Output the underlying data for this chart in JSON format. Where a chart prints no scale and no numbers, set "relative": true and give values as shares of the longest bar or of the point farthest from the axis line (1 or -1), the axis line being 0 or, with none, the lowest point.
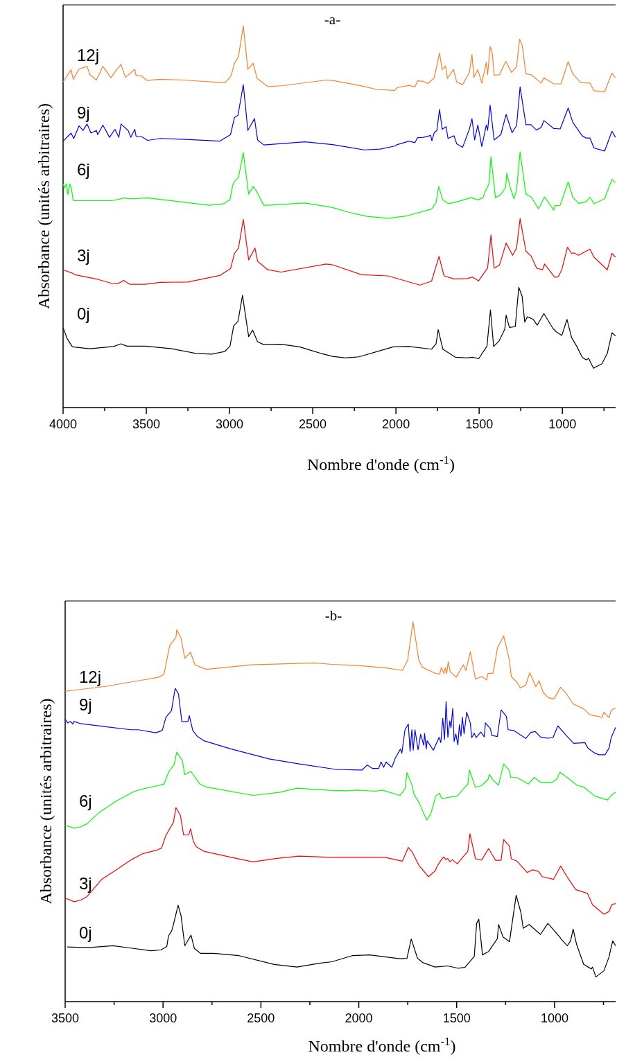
{
  "chart_data": [
    {
      "type": "line",
      "title": "-a-",
      "xlabel": "Nombre d'onde (cm$^{-1}$)",
      "ylabel": "Absorbance (unités arbitraires)",
      "relative": true,
      "tick_labels": "x",
      "xlim": [
        4000,
        680
      ],
      "xticks": [
        4000,
        {
          "value": 3750,
          "label": null
        },
        3500,
        {
          "value": 3250,
          "label": null
        },
        3000,
        {
          "value": 2750,
          "label": null
        },
        2500,
        {
          "value": 2250,
          "label": null
        },
        2000,
        {
          "value": 1750,
          "label": null
        },
        1500,
        {
          "value": 1250,
          "label": null
        },
        1000,
        {
          "value": 750,
          "label": null
        }
      ],
      "series": [
        {
          "name": "12j",
          "color": "#ff7f27",
          "x": [
            4000,
            3952,
            3939,
            3904,
            3856,
            3840,
            3800,
            3761,
            3713,
            3681,
            3652,
            3625,
            3569,
            3561,
            3529,
            3497,
            3417,
            3281,
            3026,
            2991,
            2970,
            2946,
            2917,
            2890,
            2858,
            2834,
            2770,
            2690,
            2419,
            2381,
            2222,
            2111,
            2008,
            1992,
            1921,
            1886,
            1870,
            1841,
            1807,
            1770,
            1738,
            1722,
            1702,
            1691,
            1654,
            1635,
            1599,
            1559,
            1543,
            1532,
            1508,
            1484,
            1457,
            1449,
            1434,
            1421,
            1410,
            1378,
            1340,
            1305,
            1275,
            1257,
            1241,
            1219,
            1188,
            1127,
            1111,
            1051,
            1008,
            965,
            937,
            889,
            834,
            810,
            746,
            702,
            681
          ],
          "values": [
            0.853,
            0.885,
            0.86,
            0.887,
            0.894,
            0.873,
            0.858,
            0.894,
            0.864,
            0.883,
            0.899,
            0.865,
            0.886,
            0.869,
            0.869,
            0.857,
            0.86,
            0.858,
            0.851,
            0.869,
            0.902,
            0.92,
            1.0,
            0.886,
            0.902,
            0.862,
            0.841,
            0.843,
            0.858,
            0.857,
            0.844,
            0.833,
            0.831,
            0.838,
            0.844,
            0.84,
            0.856,
            0.855,
            0.849,
            0.864,
            0.929,
            0.885,
            0.895,
            0.862,
            0.886,
            0.853,
            0.846,
            0.878,
            0.925,
            0.865,
            0.885,
            0.85,
            0.904,
            0.872,
            0.946,
            0.928,
            0.871,
            0.872,
            0.907,
            0.878,
            0.893,
            0.965,
            0.949,
            0.874,
            0.872,
            0.85,
            0.864,
            0.848,
            0.848,
            0.906,
            0.874,
            0.851,
            0.85,
            0.83,
            0.827,
            0.876,
            0.864
          ]
        },
        {
          "name": "9j",
          "color": "#0000ff",
          "x": [
            4000,
            3952,
            3936,
            3904,
            3880,
            3856,
            3832,
            3800,
            3792,
            3761,
            3721,
            3689,
            3665,
            3652,
            3609,
            3593,
            3569,
            3561,
            3529,
            3492,
            3417,
            3281,
            3058,
            2994,
            2970,
            2949,
            2917,
            2890,
            2850,
            2831,
            2794,
            2547,
            2381,
            2191,
            2095,
            2008,
            1992,
            1921,
            1886,
            1870,
            1834,
            1791,
            1784,
            1770,
            1754,
            1738,
            1722,
            1699,
            1687,
            1651,
            1635,
            1599,
            1559,
            1543,
            1527,
            1508,
            1484,
            1457,
            1449,
            1434,
            1410,
            1370,
            1338,
            1302,
            1275,
            1254,
            1219,
            1188,
            1156,
            1127,
            1111,
            1051,
            1013,
            965,
            937,
            881,
            857,
            834,
            810,
            746,
            702,
            681
          ],
          "values": [
            0.698,
            0.719,
            0.705,
            0.738,
            0.726,
            0.743,
            0.719,
            0.726,
            0.715,
            0.74,
            0.708,
            0.729,
            0.708,
            0.743,
            0.726,
            0.708,
            0.729,
            0.71,
            0.71,
            0.7,
            0.705,
            0.703,
            0.698,
            0.715,
            0.76,
            0.766,
            0.846,
            0.726,
            0.757,
            0.701,
            0.688,
            0.696,
            0.689,
            0.675,
            0.677,
            0.685,
            0.689,
            0.698,
            0.694,
            0.707,
            0.708,
            0.713,
            0.699,
            0.72,
            0.726,
            0.781,
            0.729,
            0.736,
            0.705,
            0.712,
            0.691,
            0.682,
            0.729,
            0.757,
            0.701,
            0.74,
            0.684,
            0.74,
            0.726,
            0.792,
            0.701,
            0.715,
            0.768,
            0.72,
            0.739,
            0.84,
            0.741,
            0.741,
            0.727,
            0.734,
            0.752,
            0.731,
            0.73,
            0.785,
            0.747,
            0.712,
            0.706,
            0.706,
            0.68,
            0.672,
            0.724,
            0.708
          ]
        },
        {
          "name": "6j",
          "color": "#00ff00",
          "x": [
            4000,
            3992,
            3981,
            3971,
            3960,
            3949,
            3941,
            3936,
            3705,
            3633,
            3601,
            3489,
            3329,
            3122,
            3034,
            2997,
            2981,
            2970,
            2946,
            2917,
            2885,
            2858,
            2839,
            2794,
            2770,
            2547,
            2403,
            2381,
            2286,
            2175,
            2048,
            1937,
            1786,
            1759,
            1743,
            1718,
            1683,
            1619,
            1548,
            1508,
            1476,
            1464,
            1441,
            1429,
            1402,
            1370,
            1341,
            1334,
            1315,
            1291,
            1275,
            1254,
            1219,
            1188,
            1143,
            1107,
            1051,
            1045,
            1013,
            965,
            937,
            902,
            857,
            834,
            810,
            746,
            702,
            681
          ],
          "values": [
            0.586,
            0.575,
            0.586,
            0.558,
            0.586,
            0.572,
            0.547,
            0.542,
            0.542,
            0.549,
            0.547,
            0.549,
            0.541,
            0.53,
            0.534,
            0.545,
            0.582,
            0.593,
            0.603,
            0.668,
            0.559,
            0.579,
            0.568,
            0.53,
            0.53,
            0.536,
            0.526,
            0.524,
            0.512,
            0.501,
            0.496,
            0.502,
            0.52,
            0.537,
            0.579,
            0.544,
            0.534,
            0.541,
            0.55,
            0.544,
            0.55,
            0.565,
            0.586,
            0.657,
            0.55,
            0.558,
            0.577,
            0.614,
            0.579,
            0.547,
            0.57,
            0.67,
            0.559,
            0.552,
            0.521,
            0.552,
            0.517,
            0.529,
            0.53,
            0.591,
            0.551,
            0.535,
            0.539,
            0.551,
            0.534,
            0.547,
            0.598,
            0.589
          ]
        },
        {
          "name": "3j",
          "color": "#ff0000",
          "x": [
            4000,
            3944,
            3928,
            3792,
            3705,
            3665,
            3636,
            3601,
            3505,
            3417,
            3250,
            3058,
            2994,
            2970,
            2946,
            2917,
            2885,
            2847,
            2831,
            2770,
            2690,
            2419,
            2381,
            2206,
            2048,
            1857,
            1786,
            1741,
            1711,
            1651,
            1572,
            1540,
            1503,
            1449,
            1429,
            1410,
            1378,
            1338,
            1299,
            1275,
            1254,
            1219,
            1188,
            1154,
            1119,
            1107,
            1045,
            1024,
            1003,
            969,
            945,
            929,
            902,
            857,
            834,
            810,
            730,
            702,
            681
          ],
          "values": [
            0.361,
            0.352,
            0.348,
            0.336,
            0.325,
            0.326,
            0.333,
            0.323,
            0.323,
            0.328,
            0.329,
            0.346,
            0.364,
            0.404,
            0.418,
            0.493,
            0.387,
            0.418,
            0.383,
            0.361,
            0.355,
            0.376,
            0.374,
            0.348,
            0.345,
            0.321,
            0.331,
            0.396,
            0.345,
            0.337,
            0.338,
            0.342,
            0.332,
            0.366,
            0.452,
            0.365,
            0.373,
            0.431,
            0.399,
            0.418,
            0.495,
            0.41,
            0.397,
            0.365,
            0.361,
            0.376,
            0.341,
            0.343,
            0.362,
            0.42,
            0.404,
            0.405,
            0.399,
            0.41,
            0.415,
            0.394,
            0.361,
            0.404,
            0.394
          ]
        },
        {
          "name": "0j",
          "color": "#000000",
          "x": [
            4000,
            3976,
            3944,
            3840,
            3697,
            3652,
            3617,
            3505,
            3345,
            3202,
            3106,
            3029,
            2997,
            2975,
            2949,
            2922,
            2885,
            2861,
            2831,
            2794,
            2690,
            2579,
            2451,
            2381,
            2302,
            2222,
            2016,
            1921,
            1786,
            1759,
            1746,
            1718,
            1643,
            1572,
            1540,
            1503,
            1453,
            1432,
            1413,
            1381,
            1346,
            1338,
            1318,
            1283,
            1262,
            1242,
            1226,
            1210,
            1175,
            1151,
            1111,
            1056,
            1035,
            1003,
            972,
            945,
            913,
            881,
            857,
            842,
            813,
            762,
            730,
            702,
            681
          ],
          "values": [
            0.209,
            0.181,
            0.159,
            0.154,
            0.16,
            0.167,
            0.161,
            0.161,
            0.154,
            0.142,
            0.14,
            0.147,
            0.161,
            0.214,
            0.226,
            0.294,
            0.186,
            0.203,
            0.172,
            0.165,
            0.166,
            0.159,
            0.142,
            0.134,
            0.13,
            0.133,
            0.159,
            0.16,
            0.153,
            0.167,
            0.204,
            0.153,
            0.132,
            0.13,
            0.132,
            0.128,
            0.161,
            0.256,
            0.16,
            0.174,
            0.205,
            0.242,
            0.21,
            0.212,
            0.315,
            0.292,
            0.224,
            0.238,
            0.231,
            0.216,
            0.246,
            0.207,
            0.198,
            0.189,
            0.231,
            0.184,
            0.16,
            0.132,
            0.125,
            0.129,
            0.103,
            0.115,
            0.142,
            0.196,
            0.188
          ]
        }
      ]
    },
    {
      "type": "line",
      "title": "-b-",
      "xlabel": "Nombre d'onde (cm$^{-1}$)",
      "ylabel": "Absorbance (unités arbitraires)",
      "relative": true,
      "tick_labels": "x",
      "xlim": [
        3500,
        688
      ],
      "xticks": [
        3500,
        {
          "value": 3250,
          "label": null
        },
        3000,
        {
          "value": 2750,
          "label": null
        },
        2500,
        {
          "value": 2250,
          "label": null
        },
        2000,
        {
          "value": 1750,
          "label": null
        },
        1500,
        {
          "value": 1250,
          "label": null
        },
        1000,
        {
          "value": 750,
          "label": null
        }
      ],
      "series": [
        {
          "name": "12j",
          "color": "#ff7f27",
          "x": [
            3500,
            3455,
            3294,
            3114,
            3024,
            2995,
            2966,
            2934,
            2930,
            2908,
            2889,
            2860,
            2837,
            2779,
            2548,
            2226,
            2137,
            2008,
            1867,
            1777,
            1751,
            1723,
            1693,
            1674,
            1616,
            1587,
            1578,
            1565,
            1558,
            1551,
            1543,
            1533,
            1503,
            1466,
            1453,
            1430,
            1404,
            1372,
            1346,
            1340,
            1314,
            1291,
            1260,
            1230,
            1221,
            1192,
            1175,
            1147,
            1127,
            1095,
            1079,
            1059,
            1031,
            1003,
            969,
            941,
            905,
            851,
            819,
            774,
            758,
            748,
            722,
            710,
            688
          ],
          "values": [
            0.817,
            0.82,
            0.83,
            0.846,
            0.854,
            0.862,
            0.938,
            0.959,
            0.979,
            0.957,
            0.904,
            0.92,
            0.887,
            0.875,
            0.887,
            0.892,
            0.888,
            0.885,
            0.879,
            0.872,
            0.898,
            1.0,
            0.898,
            0.88,
            0.866,
            0.862,
            0.88,
            0.864,
            0.879,
            0.864,
            0.895,
            0.869,
            0.854,
            0.887,
            0.872,
            0.921,
            0.849,
            0.856,
            0.847,
            0.864,
            0.865,
            0.932,
            0.963,
            0.898,
            0.856,
            0.841,
            0.826,
            0.833,
            0.866,
            0.829,
            0.845,
            0.815,
            0.8,
            0.797,
            0.828,
            0.812,
            0.784,
            0.771,
            0.755,
            0.751,
            0.748,
            0.762,
            0.748,
            0.767,
            0.773
          ]
        },
        {
          "name": "9j",
          "color": "#0000ff",
          "x": [
            3500,
            3487,
            3474,
            3461,
            3455,
            3422,
            3294,
            3165,
            3127,
            3037,
            3004,
            2985,
            2957,
            2938,
            2921,
            2904,
            2873,
            2866,
            2848,
            2824,
            2792,
            2651,
            2458,
            2304,
            2111,
            2086,
            1983,
            1957,
            1931,
            1899,
            1886,
            1873,
            1861,
            1831,
            1813,
            1787,
            1780,
            1764,
            1747,
            1738,
            1729,
            1722,
            1713,
            1697,
            1684,
            1668,
            1664,
            1655,
            1651,
            1619,
            1590,
            1581,
            1571,
            1562,
            1554,
            1545,
            1535,
            1529,
            1520,
            1513,
            1504,
            1494,
            1486,
            1478,
            1471,
            1462,
            1449,
            1430,
            1423,
            1410,
            1401,
            1376,
            1359,
            1353,
            1327,
            1321,
            1292,
            1273,
            1246,
            1237,
            1209,
            1147,
            1121,
            1098,
            1070,
            1037,
            1008,
            983,
            935,
            902,
            845,
            829,
            800,
            774,
            742,
            722,
            710,
            688
          ],
          "values": [
            0.744,
            0.734,
            0.738,
            0.731,
            0.738,
            0.732,
            0.724,
            0.716,
            0.716,
            0.708,
            0.714,
            0.749,
            0.766,
            0.825,
            0.81,
            0.737,
            0.737,
            0.753,
            0.714,
            0.698,
            0.687,
            0.665,
            0.639,
            0.626,
            0.611,
            0.611,
            0.61,
            0.623,
            0.614,
            0.614,
            0.631,
            0.617,
            0.631,
            0.617,
            0.642,
            0.665,
            0.654,
            0.716,
            0.731,
            0.659,
            0.716,
            0.662,
            0.716,
            0.663,
            0.704,
            0.675,
            0.706,
            0.665,
            0.687,
            0.662,
            0.696,
            0.682,
            0.746,
            0.69,
            0.79,
            0.696,
            0.739,
            0.721,
            0.772,
            0.685,
            0.705,
            0.676,
            0.729,
            0.699,
            0.749,
            0.705,
            0.762,
            0.733,
            0.695,
            0.707,
            0.695,
            0.71,
            0.697,
            0.734,
            0.718,
            0.701,
            0.698,
            0.768,
            0.751,
            0.716,
            0.714,
            0.693,
            0.709,
            0.711,
            0.696,
            0.694,
            0.695,
            0.726,
            0.698,
            0.68,
            0.682,
            0.667,
            0.656,
            0.65,
            0.65,
            0.667,
            0.696,
            0.722
          ]
        },
        {
          "name": "6j",
          "color": "#00ff00",
          "x": [
            3500,
            3455,
            3422,
            3390,
            3326,
            3242,
            3146,
            3088,
            3024,
            2995,
            2970,
            2943,
            2930,
            2902,
            2889,
            2857,
            2812,
            2779,
            2541,
            2406,
            2316,
            2137,
            2060,
            2008,
            1912,
            1880,
            1790,
            1764,
            1754,
            1728,
            1719,
            1693,
            1653,
            1632,
            1607,
            1588,
            1578,
            1565,
            1552,
            1526,
            1498,
            1443,
            1435,
            1404,
            1372,
            1340,
            1333,
            1314,
            1286,
            1260,
            1230,
            1224,
            1192,
            1134,
            1104,
            1072,
            1012,
            986,
            973,
            935,
            883,
            851,
            793,
            729,
            707,
            688
          ],
          "values": [
            0.464,
            0.457,
            0.46,
            0.468,
            0.498,
            0.527,
            0.554,
            0.562,
            0.569,
            0.573,
            0.606,
            0.624,
            0.657,
            0.636,
            0.598,
            0.606,
            0.573,
            0.565,
            0.543,
            0.551,
            0.562,
            0.556,
            0.555,
            0.557,
            0.554,
            0.557,
            0.543,
            0.56,
            0.603,
            0.57,
            0.547,
            0.525,
            0.478,
            0.495,
            0.541,
            0.549,
            0.536,
            0.534,
            0.537,
            0.539,
            0.541,
            0.573,
            0.61,
            0.564,
            0.569,
            0.585,
            0.598,
            0.583,
            0.57,
            0.626,
            0.608,
            0.59,
            0.59,
            0.573,
            0.59,
            0.578,
            0.577,
            0.587,
            0.604,
            0.59,
            0.569,
            0.565,
            0.541,
            0.531,
            0.545,
            0.551
          ]
        },
        {
          "name": "3j",
          "color": "#ff0000",
          "x": [
            3500,
            3455,
            3422,
            3390,
            3313,
            3242,
            3165,
            3101,
            3037,
            3008,
            2985,
            2947,
            2934,
            2911,
            2895,
            2869,
            2859,
            2846,
            2831,
            2792,
            2651,
            2541,
            2419,
            2304,
            2137,
            2008,
            1867,
            1777,
            1747,
            1726,
            1693,
            1644,
            1610,
            1597,
            1578,
            1565,
            1556,
            1545,
            1535,
            1522,
            1497,
            1443,
            1432,
            1404,
            1372,
            1337,
            1301,
            1273,
            1260,
            1230,
            1221,
            1192,
            1140,
            1112,
            1082,
            1063,
            1005,
            969,
            935,
            892,
            832,
            806,
            748,
            722,
            707,
            688
          ],
          "values": [
            0.273,
            0.263,
            0.267,
            0.276,
            0.322,
            0.346,
            0.373,
            0.39,
            0.398,
            0.404,
            0.438,
            0.472,
            0.511,
            0.49,
            0.439,
            0.439,
            0.455,
            0.423,
            0.408,
            0.396,
            0.38,
            0.368,
            0.377,
            0.383,
            0.38,
            0.38,
            0.38,
            0.37,
            0.406,
            0.393,
            0.359,
            0.329,
            0.344,
            0.359,
            0.374,
            0.381,
            0.374,
            0.377,
            0.368,
            0.374,
            0.363,
            0.396,
            0.442,
            0.376,
            0.373,
            0.403,
            0.372,
            0.372,
            0.427,
            0.409,
            0.376,
            0.37,
            0.34,
            0.347,
            0.343,
            0.329,
            0.322,
            0.357,
            0.328,
            0.295,
            0.285,
            0.255,
            0.23,
            0.237,
            0.256,
            0.258
          ]
        },
        {
          "name": "0j",
          "color": "#000000",
          "x": [
            3489,
            3384,
            3255,
            3165,
            3062,
            3011,
            2981,
            2972,
            2956,
            2947,
            2923,
            2908,
            2889,
            2857,
            2840,
            2808,
            2741,
            2612,
            2432,
            2316,
            2201,
            2137,
            2034,
            1944,
            1790,
            1754,
            1732,
            1700,
            1674,
            1610,
            1545,
            1494,
            1458,
            1410,
            1398,
            1387,
            1368,
            1337,
            1292,
            1286,
            1263,
            1230,
            1214,
            1196,
            1172,
            1160,
            1130,
            1072,
            1034,
            973,
            967,
            935,
            918,
            905,
            887,
            851,
            812,
            806,
            789,
            748,
            722,
            703,
            688
          ],
          "values": [
            0.144,
            0.142,
            0.147,
            0.141,
            0.134,
            0.136,
            0.145,
            0.173,
            0.186,
            0.203,
            0.254,
            0.226,
            0.147,
            0.175,
            0.14,
            0.127,
            0.127,
            0.121,
            0.098,
            0.091,
            0.101,
            0.105,
            0.121,
            0.123,
            0.113,
            0.114,
            0.165,
            0.114,
            0.103,
            0.091,
            0.094,
            0.088,
            0.09,
            0.119,
            0.206,
            0.217,
            0.123,
            0.132,
            0.166,
            0.203,
            0.17,
            0.158,
            0.216,
            0.28,
            0.235,
            0.193,
            0.203,
            0.177,
            0.206,
            0.17,
            0.165,
            0.147,
            0.16,
            0.191,
            0.15,
            0.098,
            0.086,
            0.091,
            0.065,
            0.081,
            0.117,
            0.16,
            0.147
          ]
        }
      ]
    }
  ]
}
